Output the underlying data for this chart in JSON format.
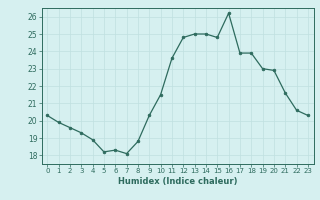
{
  "x": [
    0,
    1,
    2,
    3,
    4,
    5,
    6,
    7,
    8,
    9,
    10,
    11,
    12,
    13,
    14,
    15,
    16,
    17,
    18,
    19,
    20,
    21,
    22,
    23
  ],
  "y": [
    20.3,
    19.9,
    19.6,
    19.3,
    18.9,
    18.2,
    18.3,
    18.1,
    18.8,
    20.3,
    21.5,
    23.6,
    24.8,
    25.0,
    25.0,
    24.8,
    26.2,
    23.9,
    23.9,
    23.0,
    22.9,
    21.6,
    20.6,
    20.3
  ],
  "xlabel": "Humidex (Indice chaleur)",
  "ylim": [
    17.5,
    26.5
  ],
  "xlim": [
    -0.5,
    23.5
  ],
  "yticks": [
    18,
    19,
    20,
    21,
    22,
    23,
    24,
    25,
    26
  ],
  "xticks": [
    0,
    1,
    2,
    3,
    4,
    5,
    6,
    7,
    8,
    9,
    10,
    11,
    12,
    13,
    14,
    15,
    16,
    17,
    18,
    19,
    20,
    21,
    22,
    23
  ],
  "line_color": "#2e6b5e",
  "marker_color": "#2e6b5e",
  "bg_color": "#d6f0f0",
  "grid_color": "#c0e0e0",
  "label_color": "#2e6b5e",
  "spine_color": "#2e6b5e"
}
